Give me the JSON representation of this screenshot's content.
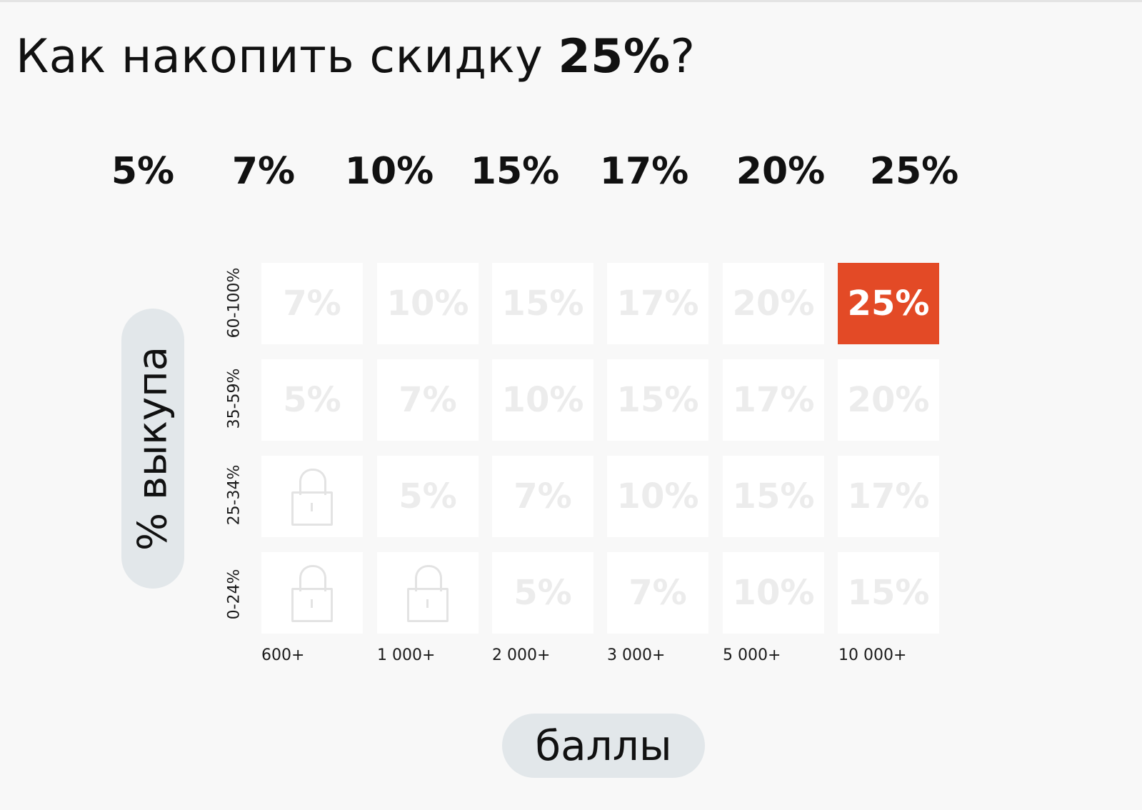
{
  "title": {
    "prefix": "Как накопить скидку ",
    "highlight": "25%",
    "suffix": "?"
  },
  "levels": [
    "5%",
    "7%",
    "10%",
    "15%",
    "17%",
    "20%",
    "25%"
  ],
  "y_axis_label": "% выкупа",
  "x_axis_label": "баллы",
  "row_labels": [
    "60-100%",
    "35-59%",
    "25-34%",
    "0-24%"
  ],
  "col_labels": [
    "600+",
    "1 000+",
    "2 000+",
    "3 000+",
    "5 000+",
    "10 000+"
  ],
  "grid": [
    [
      "7%",
      "10%",
      "15%",
      "17%",
      "20%",
      "25%"
    ],
    [
      "5%",
      "7%",
      "10%",
      "15%",
      "17%",
      "20%"
    ],
    [
      "lock",
      "5%",
      "7%",
      "10%",
      "15%",
      "17%"
    ],
    [
      "lock",
      "lock",
      "5%",
      "7%",
      "10%",
      "15%"
    ]
  ],
  "highlighted_cell": {
    "row": 0,
    "col": 5
  },
  "colors": {
    "accent": "#e34a26",
    "cell": "#ffffff",
    "cell_text": "#ececec",
    "pill": "#e2e7ea",
    "background": "#f8f8f8"
  },
  "icons": {
    "locked": "lock-icon"
  }
}
